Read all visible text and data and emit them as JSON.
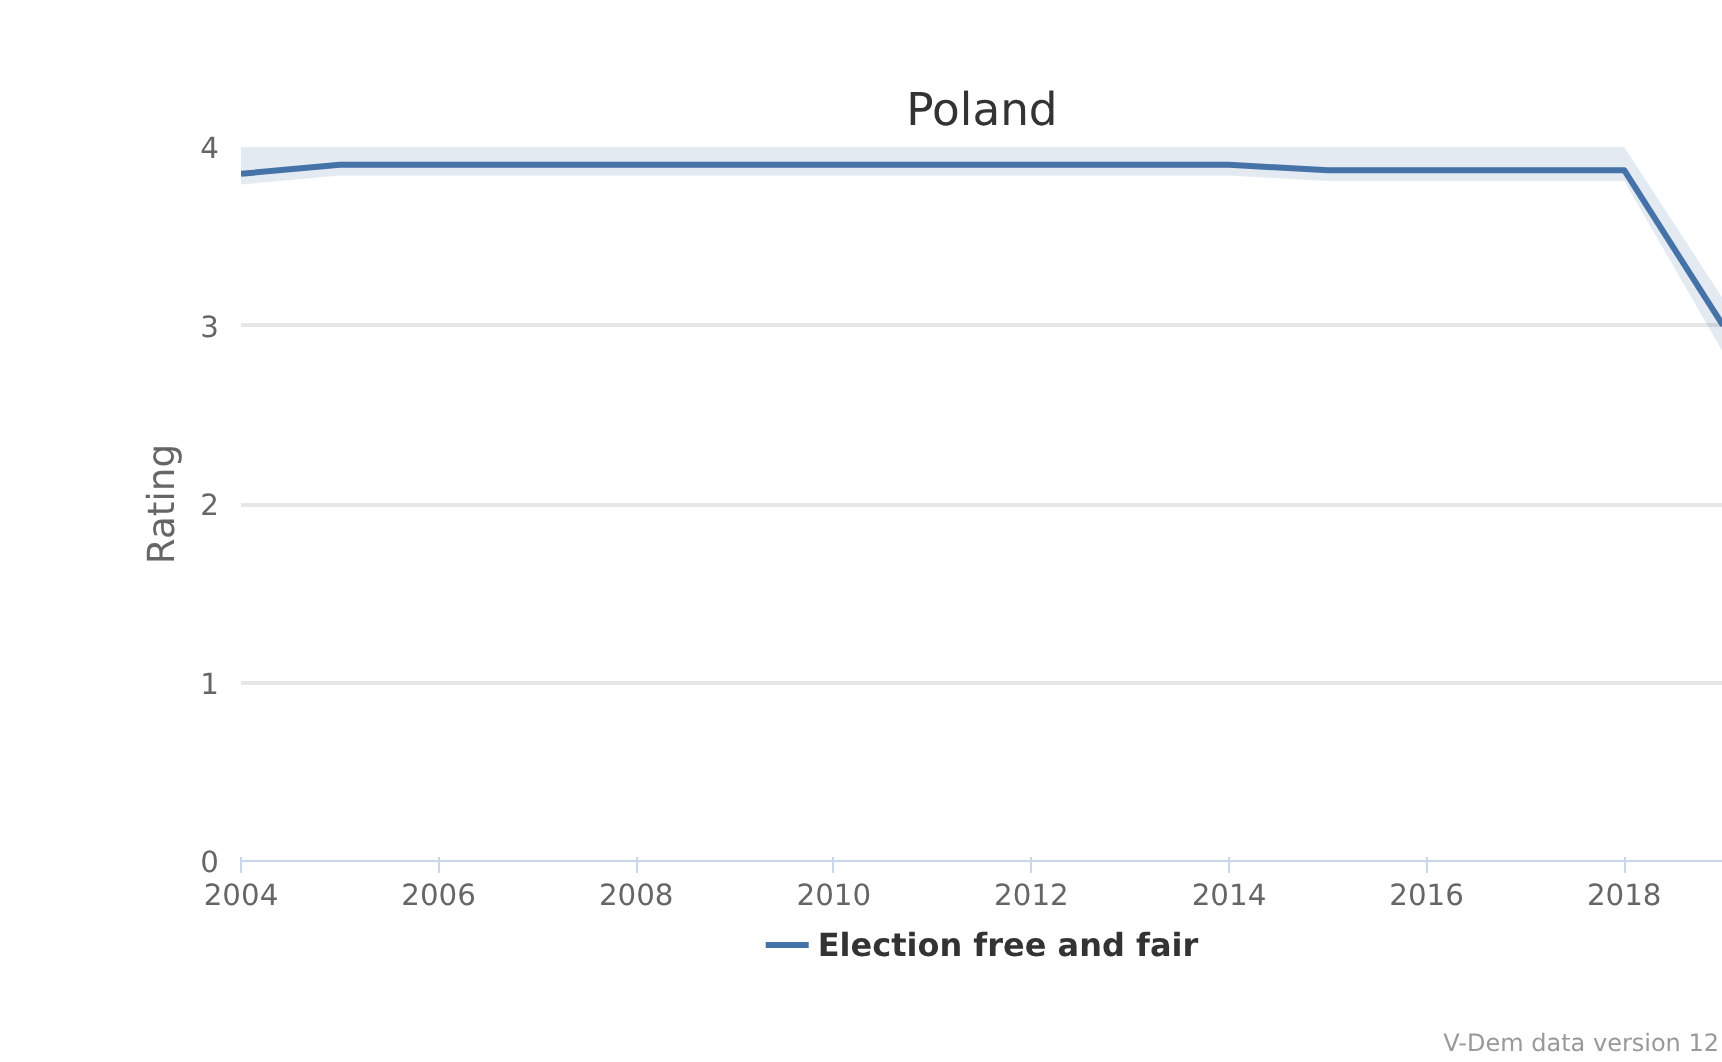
{
  "chart_data": {
    "type": "line",
    "title": "Poland",
    "ylabel": "Rating",
    "x": [
      2004,
      2005,
      2006,
      2007,
      2008,
      2009,
      2010,
      2011,
      2012,
      2013,
      2014,
      2015,
      2016,
      2017,
      2018,
      2019
    ],
    "series": [
      {
        "name": "Election free and fair",
        "color": "#4572a7",
        "values": [
          3.85,
          3.9,
          3.9,
          3.9,
          3.9,
          3.9,
          3.9,
          3.9,
          3.9,
          3.9,
          3.9,
          3.87,
          3.87,
          3.87,
          3.87,
          3.0
        ],
        "lower": [
          3.79,
          3.84,
          3.84,
          3.84,
          3.84,
          3.84,
          3.84,
          3.84,
          3.84,
          3.84,
          3.84,
          3.81,
          3.81,
          3.81,
          3.81,
          2.85
        ],
        "upper": [
          4.0,
          4.0,
          4.0,
          4.0,
          4.0,
          4.0,
          4.0,
          4.0,
          4.0,
          4.0,
          4.0,
          4.0,
          4.0,
          4.0,
          4.0,
          3.15
        ]
      }
    ],
    "xlim": [
      2004,
      2019
    ],
    "xticks": [
      2004,
      2006,
      2008,
      2010,
      2012,
      2014,
      2016,
      2018
    ],
    "ylim": [
      0,
      4
    ],
    "yticks": [
      0,
      1,
      2,
      3,
      4
    ],
    "grid": "y",
    "legend": "bottom",
    "marker": "none",
    "line_style": "solid",
    "annotations": [
      "V-Dem data version 12"
    ]
  }
}
